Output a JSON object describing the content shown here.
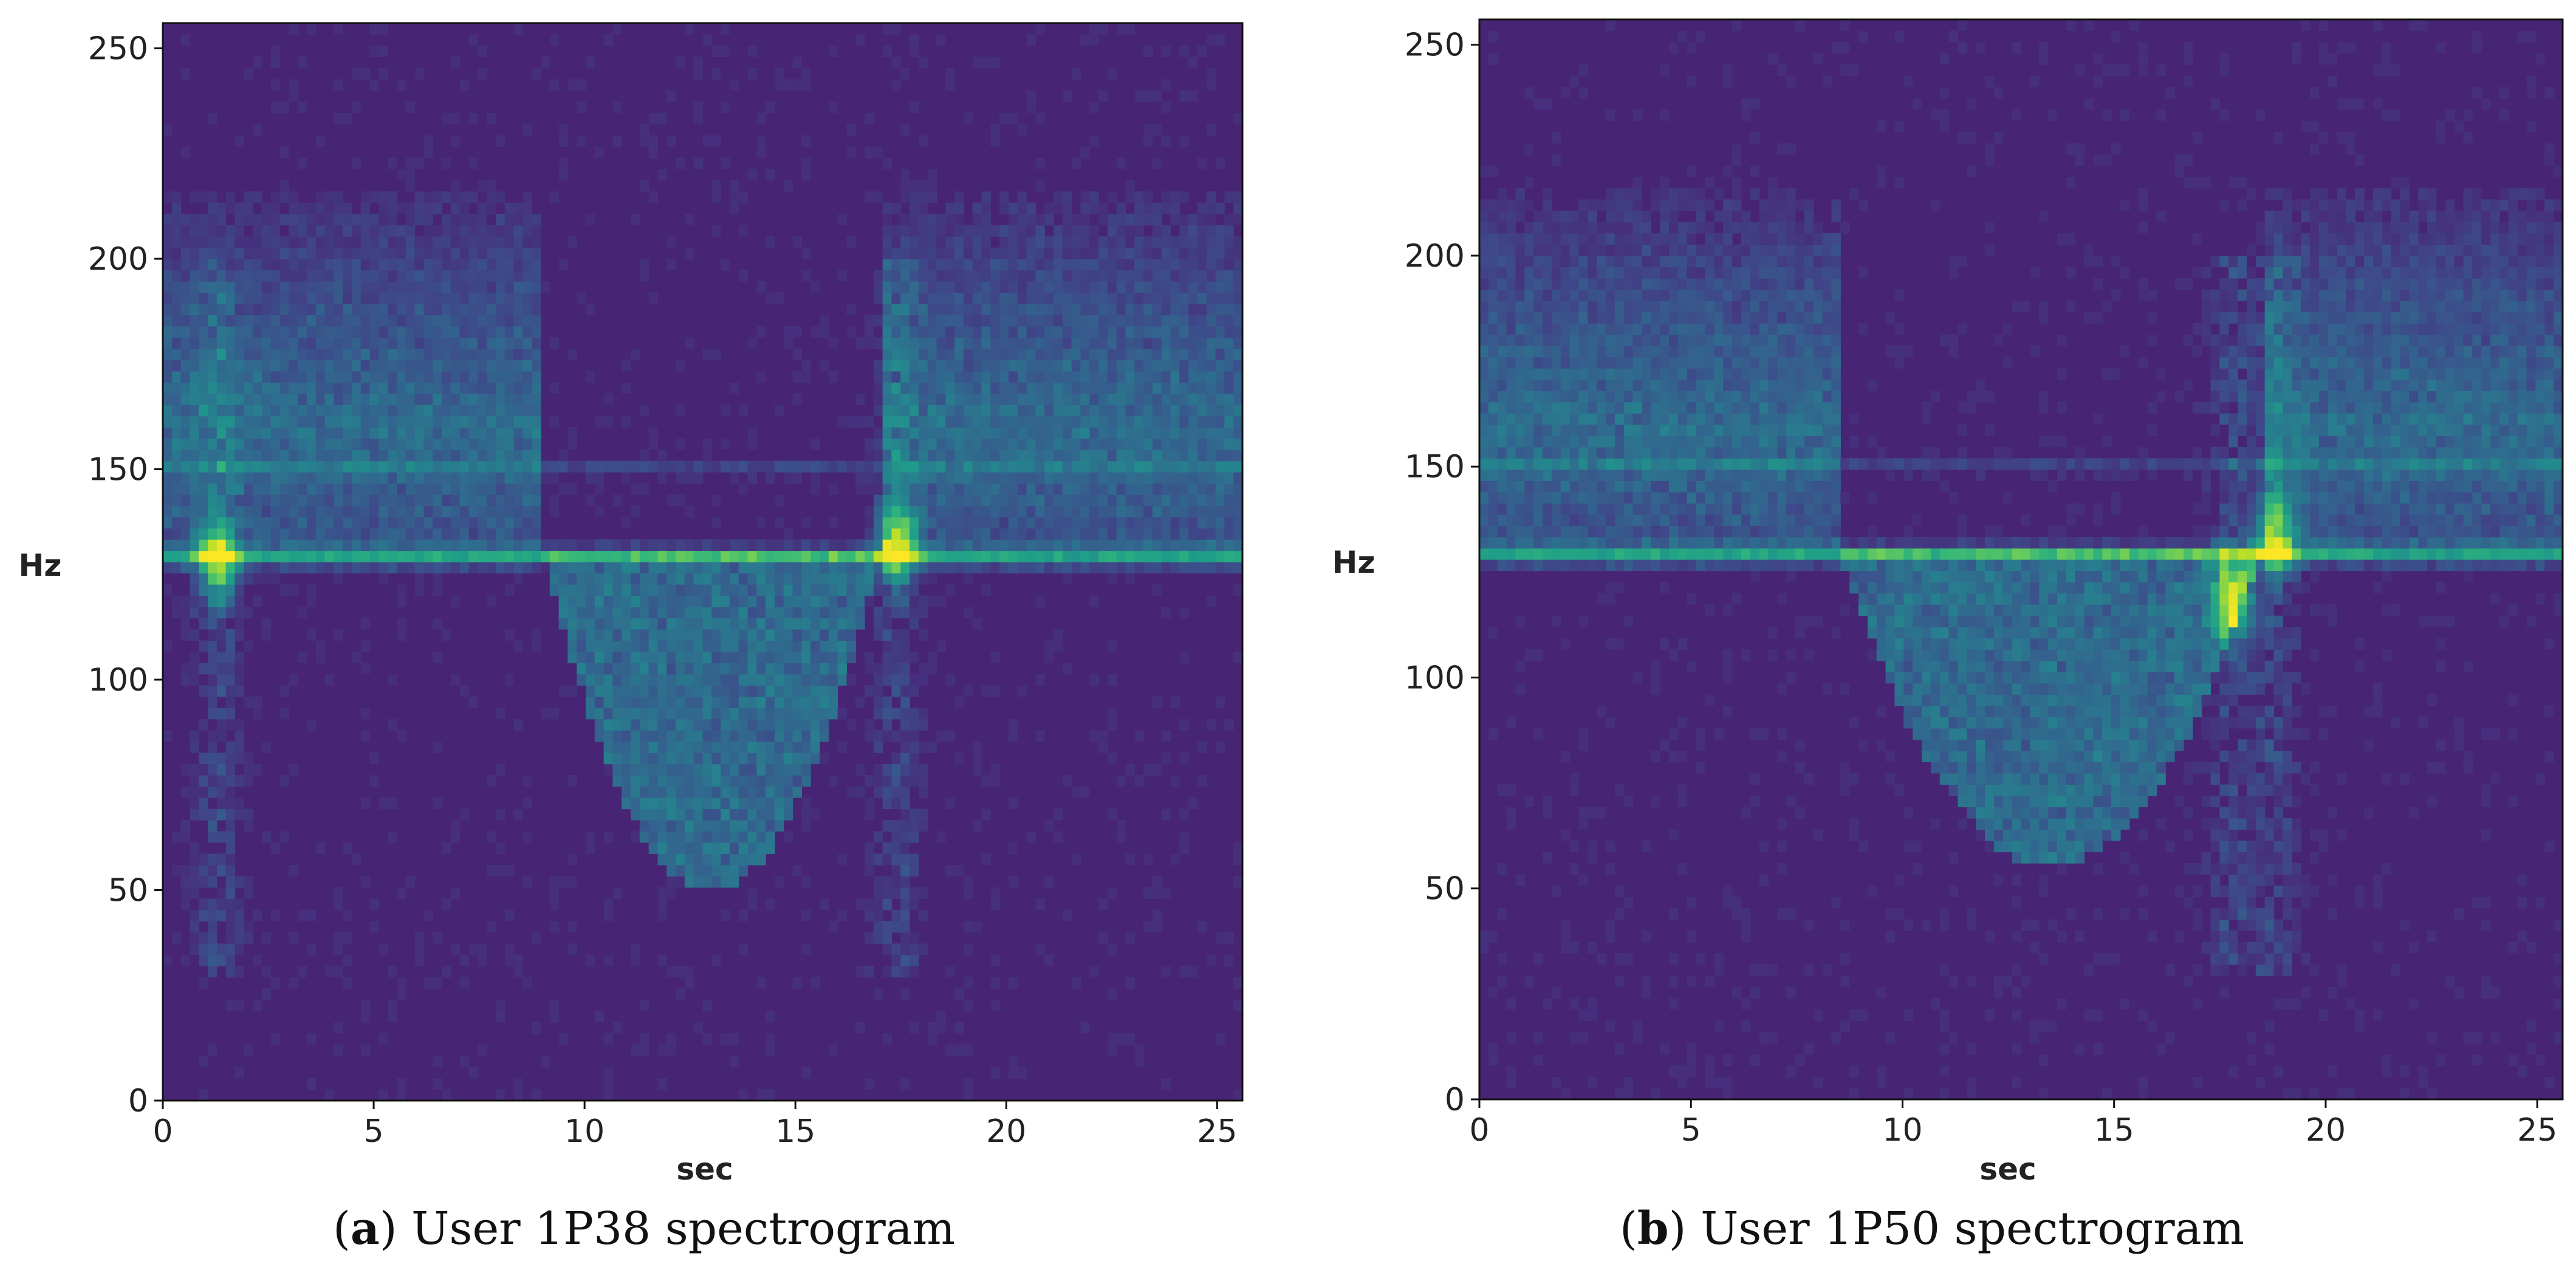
{
  "chart_data": [
    {
      "type": "heatmap",
      "title": "",
      "xlabel": "sec",
      "ylabel": "Hz",
      "xlim": [
        0,
        25.6
      ],
      "ylim": [
        0,
        256
      ],
      "x_ticks": [
        0,
        5,
        10,
        15,
        20,
        25
      ],
      "y_ticks": [
        0,
        50,
        100,
        150,
        200,
        250
      ],
      "colormap": "viridis",
      "colorbar": false,
      "features": {
        "baseline_line_hz": 130,
        "harmonic_band_hz": 150,
        "low_frequency_dip": {
          "start_sec": 9,
          "end_sec": 17,
          "min_hz": 50
        },
        "bright_bursts": [
          {
            "sec": 1.3,
            "hz": 128
          },
          {
            "sec": 17.4,
            "hz": 132
          }
        ]
      },
      "caption": {
        "label": "a",
        "text": ") User 1P38 spectrogram"
      }
    },
    {
      "type": "heatmap",
      "title": "",
      "xlabel": "sec",
      "ylabel": "Hz",
      "xlim": [
        0,
        25.6
      ],
      "ylim": [
        0,
        256
      ],
      "x_ticks": [
        0,
        5,
        10,
        15,
        20,
        25
      ],
      "y_ticks": [
        0,
        50,
        100,
        150,
        200,
        250
      ],
      "colormap": "viridis",
      "colorbar": false,
      "features": {
        "baseline_line_hz": 130,
        "harmonic_band_hz": 150,
        "low_frequency_dip": {
          "start_sec": 8.5,
          "end_sec": 18.5,
          "min_hz": 55
        },
        "bright_bursts": [
          {
            "sec": 18.8,
            "hz": 133
          },
          {
            "sec": 17.8,
            "hz": 118
          }
        ]
      },
      "caption": {
        "label": "b",
        "text": ") User 1P50 spectrogram"
      }
    }
  ]
}
